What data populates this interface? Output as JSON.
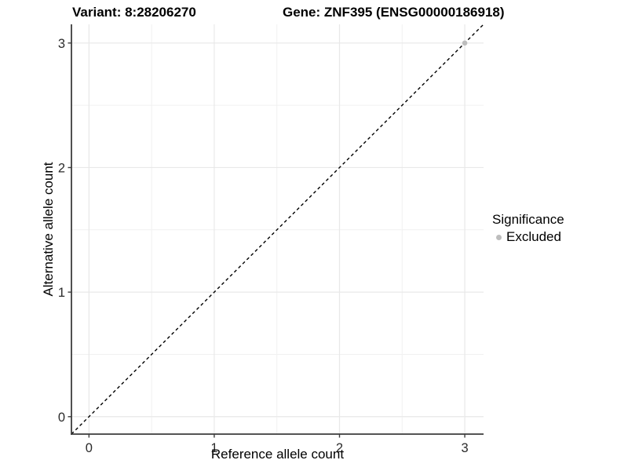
{
  "figure": {
    "title_left": "Variant: 8:28206270",
    "title_right": "Gene: ZNF395 (ENSG00000186918)"
  },
  "chart_data": {
    "type": "scatter",
    "title": "Variant: 8:28206270    Gene: ZNF395 (ENSG00000186918)",
    "xlabel": "Reference allele count",
    "ylabel": "Alternative allele count",
    "xlim": [
      -0.14,
      3.15
    ],
    "ylim": [
      -0.14,
      3.15
    ],
    "xticks": [
      0,
      1,
      2,
      3
    ],
    "yticks": [
      0,
      1,
      2,
      3
    ],
    "minor_xticks": [
      0.5,
      1.5,
      2.5
    ],
    "minor_yticks": [
      0.5,
      1.5,
      2.5
    ],
    "grid": true,
    "reference_line": {
      "type": "identity",
      "style": "dashed",
      "color": "#000000",
      "from": [
        -0.14,
        -0.14
      ],
      "to": [
        3.15,
        3.15
      ]
    },
    "series": [
      {
        "name": "Excluded",
        "color": "#bdbdbd",
        "marker": "circle",
        "points": [
          {
            "x": 3,
            "y": 3
          }
        ]
      }
    ],
    "legend": {
      "title": "Significance",
      "position": "right",
      "entries": [
        {
          "label": "Excluded",
          "color": "#bdbdbd"
        }
      ]
    }
  },
  "colors": {
    "background": "#ffffff",
    "grid_major": "#e8e8e8",
    "grid_minor": "#f1f1f1",
    "axis_line": "#3c3c3c",
    "tick_text": "#2b2b2b",
    "point": "#bdbdbd",
    "dashed_line": "#000000"
  }
}
